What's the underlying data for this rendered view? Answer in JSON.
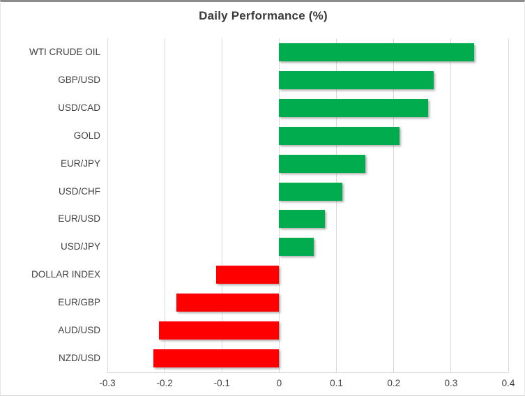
{
  "chart_data": {
    "type": "bar",
    "orientation": "horizontal",
    "title": "Daily Performance (%)",
    "categories": [
      "WTI CRUDE OIL",
      "GBP/USD",
      "USD/CAD",
      "GOLD",
      "EUR/JPY",
      "USD/CHF",
      "EUR/USD",
      "USD/JPY",
      "DOLLAR INDEX",
      "EUR/GBP",
      "AUD/USD",
      "NZD/USD"
    ],
    "values": [
      0.34,
      0.27,
      0.26,
      0.21,
      0.15,
      0.11,
      0.08,
      0.06,
      -0.11,
      -0.18,
      -0.21,
      -0.22
    ],
    "xlim": [
      -0.3,
      0.4
    ],
    "xticks": [
      -0.3,
      -0.2,
      -0.1,
      0,
      0.1,
      0.2,
      0.3,
      0.4
    ],
    "xtick_labels": [
      "-0.3",
      "-0.2",
      "-0.1",
      "0",
      "0.1",
      "0.2",
      "0.3",
      "0.4"
    ],
    "grid": true,
    "legend": false,
    "xlabel": "",
    "ylabel": "",
    "colors": {
      "positive": "#00AC4E",
      "negative": "#FF0000",
      "gridline": "#D9D9D9",
      "axis_line": "#D9D9D9",
      "text": "#404040",
      "title": "#3A3A3A"
    }
  }
}
